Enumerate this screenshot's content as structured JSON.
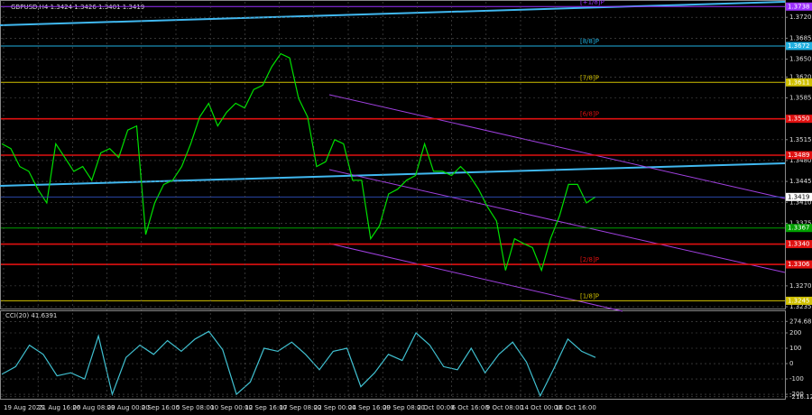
{
  "header": "GBPUSD,H4  1.3424 1.3426 1.3401 1.3419",
  "time_axis": [
    "19 Aug 2025",
    "21 Aug 16:00",
    "26 Aug 08:00",
    "29 Aug 00:00",
    "2 Sep 16:00",
    "5 Sep 08:00",
    "10 Sep 00:00",
    "12 Sep 16:00",
    "17 Sep 08:00",
    "22 Sep 00:00",
    "24 Sep 16:00",
    "29 Sep 08:00",
    "2 Oct 00:00",
    "6 Oct 16:00",
    "9 Oct 08:00",
    "14 Oct 00:00",
    "16 Oct 16:00"
  ],
  "chart_data": [
    {
      "type": "line",
      "color": "#00e000",
      "ylim": [
        1.3232,
        1.3746
      ],
      "yticks": [
        {
          "value": 1.372,
          "label": "1.3720"
        },
        {
          "value": 1.3685,
          "label": "1.3685"
        },
        {
          "value": 1.365,
          "label": "1.3650"
        },
        {
          "value": 1.362,
          "label": "1.3620"
        },
        {
          "value": 1.3585,
          "label": "1.3585"
        },
        {
          "value": 1.3515,
          "label": "1.3515"
        },
        {
          "value": 1.348,
          "label": "1.3480"
        },
        {
          "value": 1.3445,
          "label": "1.3445"
        },
        {
          "value": 1.341,
          "label": "1.3410"
        },
        {
          "value": 1.3375,
          "label": "1.3375"
        },
        {
          "value": 1.327,
          "label": "1.3270"
        },
        {
          "value": 1.3235,
          "label": "1.3235"
        }
      ],
      "levels": [
        {
          "value": 1.3738,
          "label": "1.3738",
          "tag": "[+1/8]P",
          "color": "#9b30ff"
        },
        {
          "value": 1.3672,
          "label": "1.3672",
          "tag": "[8/8]P",
          "color": "#20b0e0"
        },
        {
          "value": 1.3611,
          "label": "1.3611",
          "tag": "[7/8]P",
          "color": "#d0c000"
        },
        {
          "value": 1.355,
          "label": "1.3550",
          "tag": "[6/8]P",
          "color": "#e01010"
        },
        {
          "value": 1.3489,
          "label": "1.3489",
          "color": "#e01010"
        },
        {
          "value": 1.3367,
          "label": "1.3367",
          "color": "#00a000"
        },
        {
          "value": 1.334,
          "label": "1.3340",
          "color": "#e01010"
        },
        {
          "value": 1.3306,
          "label": "1.3306",
          "tag": "[2/8]P",
          "color": "#e01010"
        },
        {
          "value": 1.3245,
          "label": "1.3245",
          "tag": "[1/8]P",
          "color": "#d0c000"
        }
      ],
      "current": {
        "value": 1.3419,
        "label": "1.3419"
      },
      "values": [
        1.3508,
        1.35,
        1.347,
        1.3462,
        1.3432,
        1.3409,
        1.3508,
        1.3485,
        1.3462,
        1.347,
        1.3447,
        1.3493,
        1.35,
        1.3485,
        1.3531,
        1.3538,
        1.3356,
        1.3409,
        1.344,
        1.3447,
        1.347,
        1.3508,
        1.3553,
        1.3576,
        1.3538,
        1.3561,
        1.3576,
        1.3568,
        1.3599,
        1.3606,
        1.3637,
        1.3659,
        1.3652,
        1.3584,
        1.3553,
        1.347,
        1.3478,
        1.3515,
        1.3508,
        1.3447,
        1.3447,
        1.3349,
        1.3371,
        1.3424,
        1.3432,
        1.3447,
        1.3455,
        1.3508,
        1.3462,
        1.3462,
        1.3455,
        1.347,
        1.3455,
        1.3432,
        1.3402,
        1.3379,
        1.3296,
        1.3349,
        1.3341,
        1.3334,
        1.3296,
        1.3349,
        1.3387,
        1.344,
        1.344,
        1.3409,
        1.3419
      ]
    },
    {
      "type": "line",
      "title": "CCI(20) 41.6391",
      "color": "#40c0d0",
      "ylim": [
        -229,
        341
      ],
      "yticks": [
        274.6864,
        200,
        100,
        0,
        -100,
        -200,
        -216.1279
      ],
      "values": [
        -70,
        -20,
        120,
        60,
        -80,
        -60,
        -100,
        180,
        -200,
        40,
        120,
        60,
        150,
        80,
        160,
        210,
        90,
        -200,
        -120,
        100,
        80,
        140,
        60,
        -40,
        80,
        100,
        -150,
        -60,
        60,
        20,
        200,
        120,
        -20,
        -40,
        100,
        -60,
        60,
        140,
        10,
        -210,
        -30,
        160,
        80,
        40
      ]
    }
  ]
}
